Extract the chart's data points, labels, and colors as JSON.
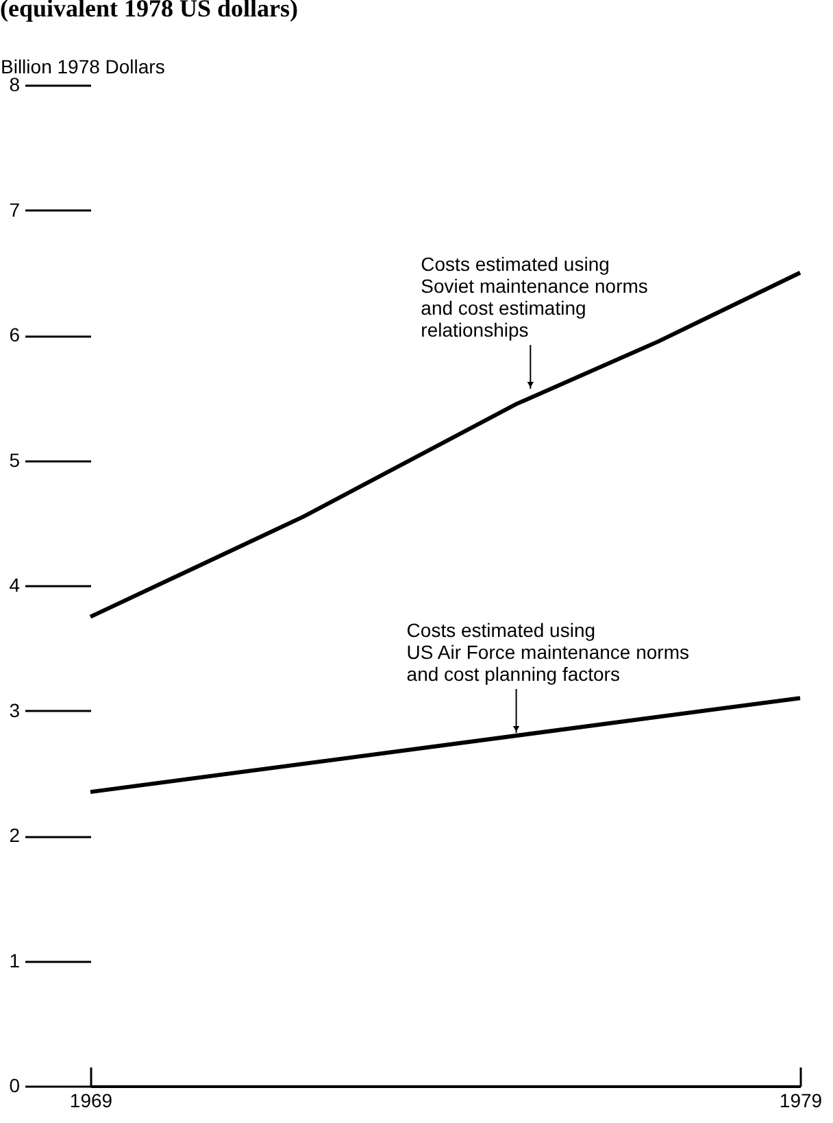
{
  "chart_data": {
    "type": "line",
    "title": "(equivalent 1978 US dollars)",
    "ylabel": "Billion 1978 Dollars",
    "x": [
      1969,
      1972,
      1975,
      1977,
      1979
    ],
    "series": [
      {
        "color": "#000000",
        "values": [
          3.75,
          4.55,
          5.45,
          5.95,
          6.5
        ]
      },
      {
        "color": "#000000",
        "x": [
          1969,
          1979
        ],
        "values": [
          2.35,
          3.1
        ]
      }
    ],
    "xlim": [
      1969,
      1979
    ],
    "xticks": [
      1969,
      1979
    ],
    "ylim": [
      0,
      8
    ],
    "yticks": [
      0,
      1,
      2,
      3,
      4,
      5,
      6,
      7,
      8
    ],
    "grid": false,
    "legend": false,
    "marker": "none",
    "line_style": "solid",
    "annotations": [
      {
        "text": "Costs estimated using\nSoviet maintenance norms\nand cost estimating\nrelationships",
        "x": 1975.2,
        "y": 5.55
      },
      {
        "text": "Costs estimated using\nUS Air Force maintenance norms\nand cost planning factors",
        "x": 1975,
        "y": 2.8
      }
    ]
  }
}
